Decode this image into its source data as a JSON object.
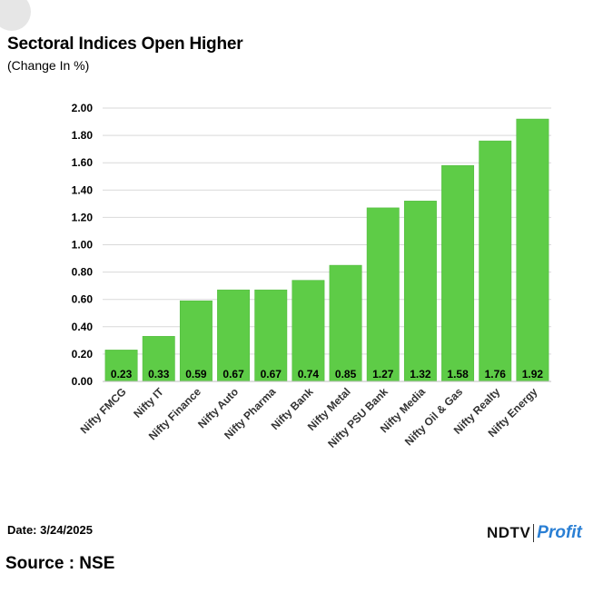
{
  "header": {
    "title": "Sectoral Indices Open Higher",
    "subtitle": "(Change In %)"
  },
  "footer": {
    "date": "Date: 3/24/2025",
    "source": "Source : NSE",
    "brand_ndtv": "NDTV",
    "brand_profit": "Profit"
  },
  "colors": {
    "bar": "#5ecc47",
    "bar_stroke": "#4db63a",
    "grid": "#d9d9d9",
    "text": "#000000"
  },
  "chart_data": {
    "type": "bar",
    "title": "Sectoral Indices Open Higher",
    "subtitle": "(Change In %)",
    "xlabel": "",
    "ylabel": "",
    "ylim": [
      0,
      2
    ],
    "yticks": [
      "0.00",
      "0.20",
      "0.40",
      "0.60",
      "0.80",
      "1.00",
      "1.20",
      "1.40",
      "1.60",
      "1.80",
      "2.00"
    ],
    "grid": true,
    "categories": [
      "Nifty FMCG",
      "Nifty IT",
      "Nifty Finance",
      "Nifty Auto",
      "Nifty Pharma",
      "Nifty Bank",
      "Nifty Metal",
      "Nifty PSU Bank",
      "Nifty Media",
      "Nifty Oil & Gas",
      "Nifty Realty",
      "Nifty Energy"
    ],
    "values": [
      0.23,
      0.33,
      0.59,
      0.67,
      0.67,
      0.74,
      0.85,
      1.27,
      1.32,
      1.58,
      1.76,
      1.92
    ],
    "data_labels": [
      "0.23",
      "0.33",
      "0.59",
      "0.67",
      "0.67",
      "0.74",
      "0.85",
      "1.27",
      "1.32",
      "1.58",
      "1.76",
      "1.92"
    ]
  }
}
